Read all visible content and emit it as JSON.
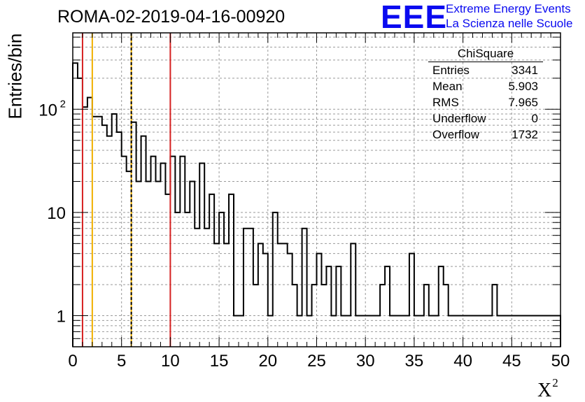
{
  "title": "ROMA-02-2019-04-16-00920",
  "logo": {
    "letters": "EEE",
    "line1": "Extreme Energy Events",
    "line2": "La Scienza nelle Scuole",
    "color": "#0a0af0"
  },
  "stats": {
    "title": "ChiSquare",
    "rows": [
      {
        "label": "Entries",
        "value": "3341"
      },
      {
        "label": "Mean",
        "value": "5.903"
      },
      {
        "label": "RMS",
        "value": "7.965"
      },
      {
        "label": "Underflow",
        "value": "0"
      },
      {
        "label": "Overflow",
        "value": "1732"
      }
    ]
  },
  "chart_data": {
    "type": "bar",
    "subtype": "histogram",
    "title": "ROMA-02-2019-04-16-00920",
    "xlabel": "X",
    "xlabel_superscript": "2",
    "ylabel": "Entries/bin",
    "xlim": [
      0,
      50
    ],
    "ylim": [
      0.5,
      550
    ],
    "yscale": "log",
    "grid": true,
    "bin_width": 0.5,
    "bin_start": 0,
    "values": [
      280,
      200,
      105,
      130,
      85,
      85,
      70,
      55,
      90,
      60,
      35,
      25,
      75,
      20,
      55,
      20,
      35,
      20,
      30,
      15,
      35,
      10,
      35,
      10,
      20,
      7,
      30,
      7,
      15,
      5,
      10,
      5,
      15,
      1,
      1,
      7,
      7,
      2,
      5,
      4,
      1,
      10,
      5,
      5,
      4,
      2,
      1,
      7,
      1,
      2,
      4,
      2,
      3,
      1,
      3,
      1,
      1,
      5,
      1,
      1,
      1,
      1,
      1,
      2,
      3,
      1,
      1,
      1,
      1,
      4,
      1,
      1,
      2,
      1,
      1,
      3,
      2,
      1,
      1,
      1,
      1,
      1,
      1,
      1,
      1,
      1,
      2,
      1,
      1,
      1,
      1,
      1,
      1,
      1,
      1,
      1,
      1,
      1,
      1,
      1
    ],
    "vertical_lines": [
      {
        "x": 1,
        "color": "#d62020",
        "style": "solid"
      },
      {
        "x": 2,
        "color": "#f0b000",
        "style": "solid"
      },
      {
        "x": 6,
        "color": "#f0b000",
        "style": "solid"
      },
      {
        "x": 6,
        "color": "#000000",
        "style": "dashed"
      },
      {
        "x": 10,
        "color": "#d62020",
        "style": "solid"
      }
    ],
    "x_ticks": [
      "0",
      "5",
      "10",
      "15",
      "20",
      "25",
      "30",
      "35",
      "40",
      "45",
      "50"
    ],
    "y_ticks": [
      {
        "value": 1,
        "label": "1"
      },
      {
        "value": 10,
        "label": "10"
      },
      {
        "value": 100,
        "label": "10",
        "exponent": "2"
      }
    ]
  }
}
